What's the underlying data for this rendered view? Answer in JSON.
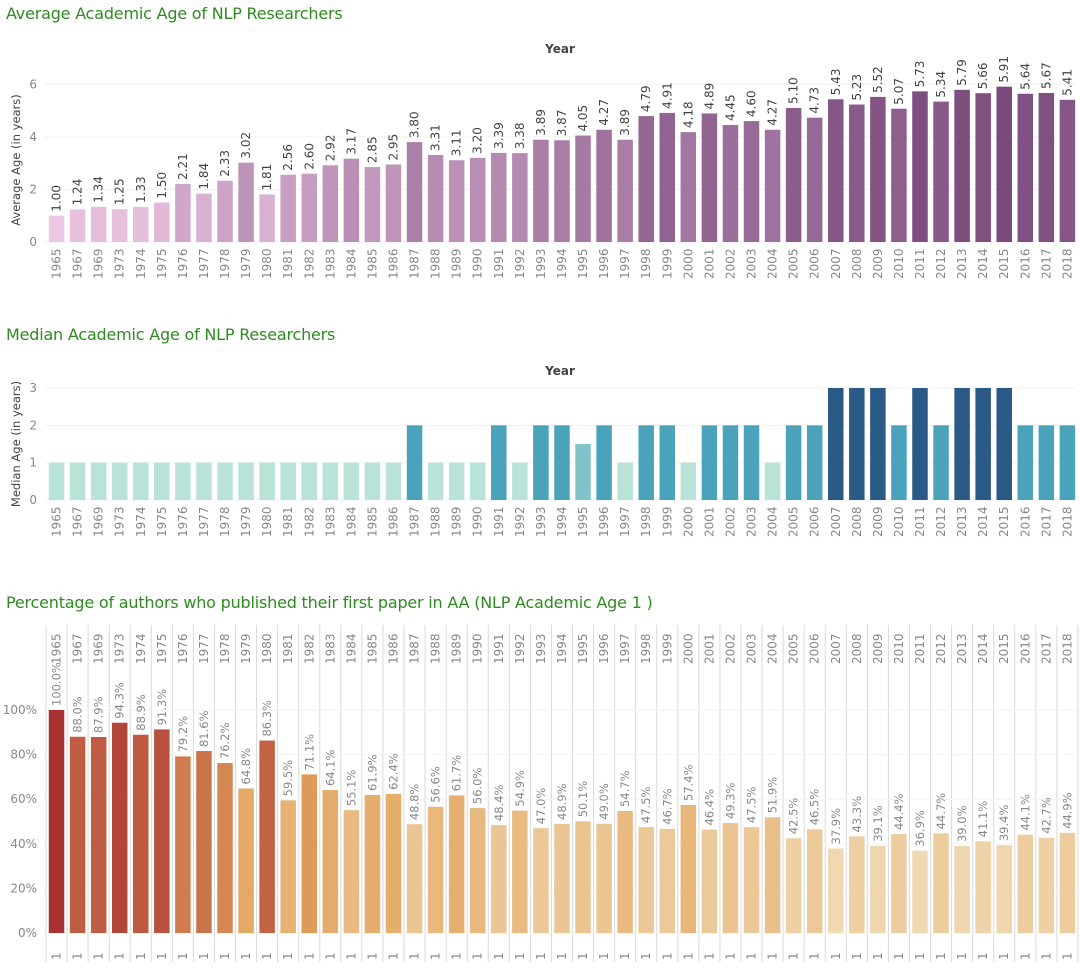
{
  "chart_data": [
    {
      "type": "bar",
      "title": "Average Academic Age of NLP Researchers",
      "header": "Year",
      "xlabel": "",
      "ylabel": "Average Age (in years)",
      "ylim": [
        0,
        7
      ],
      "yticks": [
        "0",
        "2",
        "4",
        "6"
      ],
      "grid": true,
      "categories": [
        "1965",
        "1967",
        "1969",
        "1973",
        "1974",
        "1975",
        "1976",
        "1977",
        "1978",
        "1979",
        "1980",
        "1981",
        "1982",
        "1983",
        "1984",
        "1985",
        "1986",
        "1987",
        "1988",
        "1989",
        "1990",
        "1991",
        "1992",
        "1993",
        "1994",
        "1995",
        "1996",
        "1997",
        "1998",
        "1999",
        "2000",
        "2001",
        "2002",
        "2003",
        "2004",
        "2005",
        "2006",
        "2007",
        "2008",
        "2009",
        "2010",
        "2011",
        "2012",
        "2013",
        "2014",
        "2015",
        "2016",
        "2017",
        "2018"
      ],
      "values": [
        1.0,
        1.24,
        1.34,
        1.25,
        1.33,
        1.5,
        2.21,
        1.84,
        2.33,
        3.02,
        1.81,
        2.56,
        2.6,
        2.92,
        3.17,
        2.85,
        2.95,
        3.8,
        3.31,
        3.11,
        3.2,
        3.39,
        3.38,
        3.89,
        3.87,
        4.05,
        4.27,
        3.89,
        4.79,
        4.91,
        4.18,
        4.89,
        4.45,
        4.6,
        4.27,
        5.1,
        4.73,
        5.43,
        5.23,
        5.52,
        5.07,
        5.73,
        5.34,
        5.79,
        5.66,
        5.91,
        5.64,
        5.67,
        5.41
      ],
      "labels": [
        "1.00",
        "1.24",
        "1.34",
        "1.25",
        "1.33",
        "1.50",
        "2.21",
        "1.84",
        "2.33",
        "3.02",
        "1.81",
        "2.56",
        "2.60",
        "2.92",
        "3.17",
        "2.85",
        "2.95",
        "3.80",
        "3.31",
        "3.11",
        "3.20",
        "3.39",
        "3.38",
        "3.89",
        "3.87",
        "4.05",
        "4.27",
        "3.89",
        "4.79",
        "4.91",
        "4.18",
        "4.89",
        "4.45",
        "4.60",
        "4.27",
        "5.10",
        "4.73",
        "5.43",
        "5.23",
        "5.52",
        "5.07",
        "5.73",
        "5.34",
        "5.79",
        "5.66",
        "5.91",
        "5.64",
        "5.67",
        "5.41"
      ],
      "color_scale": [
        "#ecc6e2",
        "#7a4a7c"
      ]
    },
    {
      "type": "bar",
      "title": "Median Academic Age of NLP Researchers",
      "header": "Year",
      "xlabel": "",
      "ylabel": "Median Age (in years)",
      "ylim": [
        0,
        3
      ],
      "yticks": [
        "0",
        "1",
        "2",
        "3"
      ],
      "grid": true,
      "categories": [
        "1965",
        "1967",
        "1969",
        "1973",
        "1974",
        "1975",
        "1976",
        "1977",
        "1978",
        "1979",
        "1980",
        "1981",
        "1982",
        "1983",
        "1984",
        "1985",
        "1986",
        "1987",
        "1988",
        "1989",
        "1990",
        "1991",
        "1992",
        "1993",
        "1994",
        "1995",
        "1996",
        "1997",
        "1998",
        "1999",
        "2000",
        "2001",
        "2002",
        "2003",
        "2004",
        "2005",
        "2006",
        "2007",
        "2008",
        "2009",
        "2010",
        "2011",
        "2012",
        "2013",
        "2014",
        "2015",
        "2016",
        "2017",
        "2018"
      ],
      "values": [
        1,
        1,
        1,
        1,
        1,
        1,
        1,
        1,
        1,
        1,
        1,
        1,
        1,
        1,
        1,
        1,
        1,
        2,
        1,
        1,
        1,
        2,
        1,
        2,
        2,
        1.5,
        2,
        1,
        2,
        2,
        1,
        2,
        2,
        2,
        1,
        2,
        2,
        3,
        3,
        3,
        2,
        3,
        2,
        3,
        3,
        3,
        2,
        2,
        2
      ],
      "color_scale": [
        "#b9e3d8",
        "#4aa3bb",
        "#2b5a87"
      ]
    },
    {
      "type": "bar",
      "title": "Percentage of authors who published their first paper in AA (NLP Academic Age 1 )",
      "header": "",
      "xlabel": "",
      "ylabel": "",
      "ylim": [
        0,
        115
      ],
      "yticks": [
        "0%",
        "20%",
        "40%",
        "60%",
        "80%",
        "100%"
      ],
      "grid": true,
      "categories": [
        "1965",
        "1967",
        "1969",
        "1973",
        "1974",
        "1975",
        "1976",
        "1977",
        "1978",
        "1979",
        "1980",
        "1981",
        "1982",
        "1983",
        "1984",
        "1985",
        "1986",
        "1987",
        "1988",
        "1989",
        "1990",
        "1991",
        "1992",
        "1993",
        "1994",
        "1995",
        "1996",
        "1997",
        "1998",
        "1999",
        "2000",
        "2001",
        "2002",
        "2003",
        "2004",
        "2005",
        "2006",
        "2007",
        "2008",
        "2009",
        "2010",
        "2011",
        "2012",
        "2013",
        "2014",
        "2015",
        "2016",
        "2017",
        "2018"
      ],
      "bottom_label": "1",
      "values": [
        100.0,
        88.0,
        87.9,
        94.3,
        88.9,
        91.3,
        79.2,
        81.6,
        76.2,
        64.8,
        86.3,
        59.5,
        71.1,
        64.1,
        55.1,
        61.9,
        62.4,
        48.8,
        56.6,
        61.7,
        56.0,
        48.4,
        54.9,
        47.0,
        48.9,
        50.1,
        49.0,
        54.7,
        47.5,
        46.7,
        57.4,
        46.4,
        49.3,
        47.5,
        51.9,
        42.5,
        46.5,
        37.9,
        43.3,
        39.1,
        44.4,
        36.9,
        44.7,
        39.0,
        41.1,
        39.4,
        44.1,
        42.7,
        44.9
      ],
      "labels": [
        "100.0%",
        "88.0%",
        "87.9%",
        "94.3%",
        "88.9%",
        "91.3%",
        "79.2%",
        "81.6%",
        "76.2%",
        "64.8%",
        "86.3%",
        "59.5%",
        "71.1%",
        "64.1%",
        "55.1%",
        "61.9%",
        "62.4%",
        "48.8%",
        "56.6%",
        "61.7%",
        "56.0%",
        "48.4%",
        "54.9%",
        "47.0%",
        "48.9%",
        "50.1%",
        "49.0%",
        "54.7%",
        "47.5%",
        "46.7%",
        "57.4%",
        "46.4%",
        "49.3%",
        "47.5%",
        "51.9%",
        "42.5%",
        "46.5%",
        "37.9%",
        "43.3%",
        "39.1%",
        "44.4%",
        "36.9%",
        "44.7%",
        "39.0%",
        "41.1%",
        "39.4%",
        "44.1%",
        "42.7%",
        "44.9%"
      ],
      "color_scale": [
        "#f0dab4",
        "#e3a35c",
        "#a83232"
      ]
    }
  ]
}
